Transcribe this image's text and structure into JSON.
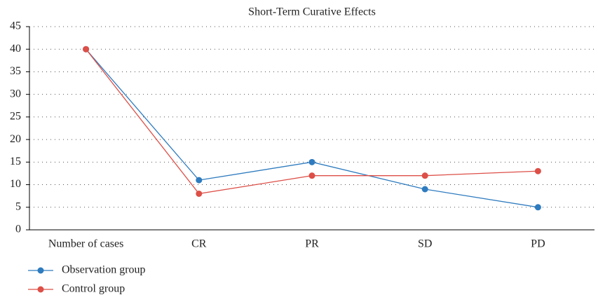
{
  "chart_data": {
    "type": "line",
    "title": "Short-Term Curative Effects",
    "categories": [
      "Number of cases",
      "CR",
      "PR",
      "SD",
      "PD"
    ],
    "series": [
      {
        "name": "Observation group",
        "color": "#2e7bbf",
        "values": [
          40,
          11,
          15,
          9,
          5
        ]
      },
      {
        "name": "Control group",
        "color": "#dd4f47",
        "values": [
          40,
          8,
          12,
          12,
          13
        ]
      }
    ],
    "ylim": [
      0,
      45
    ],
    "yticks": [
      0,
      5,
      10,
      15,
      20,
      25,
      30,
      35,
      40,
      45
    ],
    "grid": true,
    "legend": "bottom-left"
  }
}
